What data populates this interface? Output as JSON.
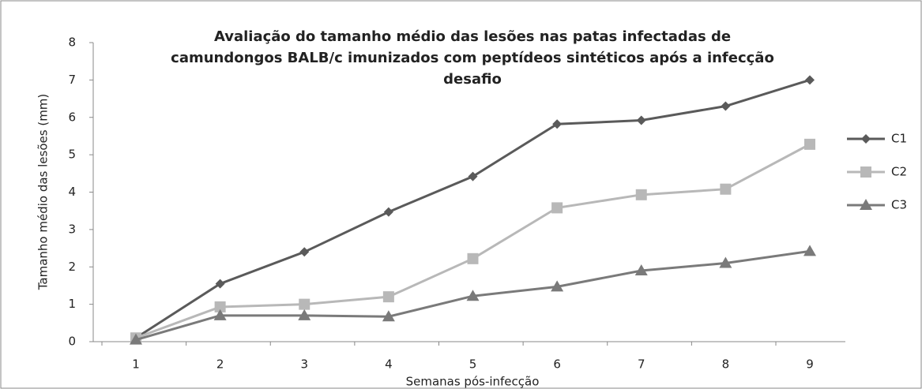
{
  "chart_data": {
    "type": "line",
    "title": [
      "Avaliação do tamanho médio das lesões nas patas infectadas de",
      "camundongos BALB/c imunizados com peptídeos sintéticos após a infecção",
      "desafio"
    ],
    "x_label": "Semanas pós-infecção",
    "y_label": "Tamanho médio das lesões (mm)",
    "categories": [
      "1",
      "2",
      "3",
      "4",
      "5",
      "6",
      "7",
      "8",
      "9"
    ],
    "series": [
      {
        "name": "C1",
        "color": "#5a5a5a",
        "marker": "diamond",
        "values": [
          0.1,
          1.55,
          2.4,
          3.47,
          4.42,
          5.82,
          5.92,
          6.3,
          7.0
        ]
      },
      {
        "name": "C2",
        "color": "#b8b8b8",
        "marker": "square",
        "values": [
          0.1,
          0.93,
          1.0,
          1.2,
          2.22,
          3.58,
          3.93,
          4.08,
          5.28
        ]
      },
      {
        "name": "C3",
        "color": "#7a7a7a",
        "marker": "triangle",
        "values": [
          0.05,
          0.7,
          0.7,
          0.67,
          1.22,
          1.47,
          1.9,
          2.1,
          2.42
        ]
      }
    ],
    "ylim": [
      0,
      8
    ],
    "yticks": [
      0,
      1,
      2,
      3,
      4,
      5,
      6,
      7,
      8
    ],
    "grid": false,
    "legend": "right"
  }
}
